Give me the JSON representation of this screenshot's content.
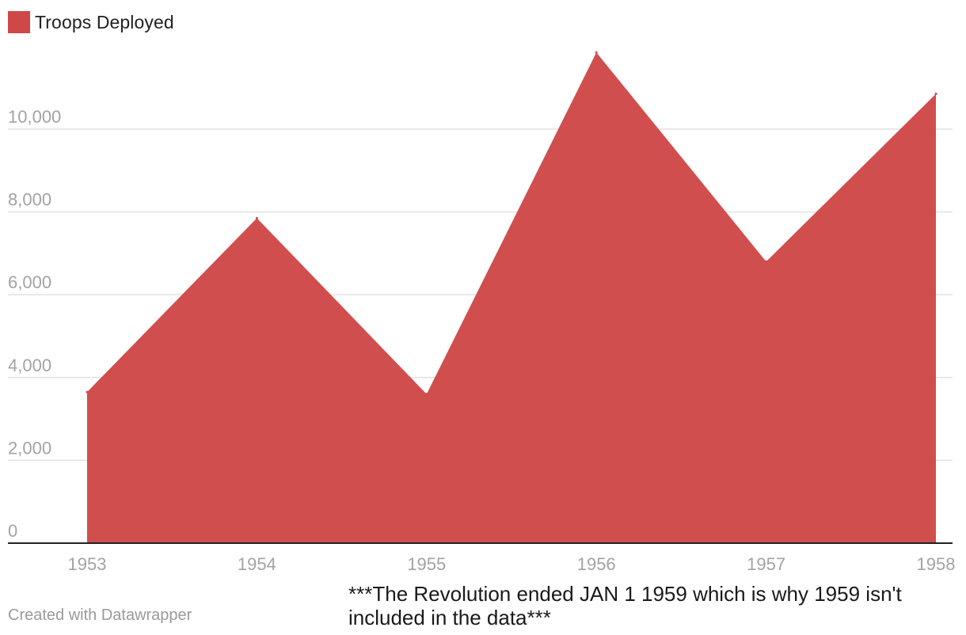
{
  "legend": {
    "label": "Troops Deployed",
    "color": "#cf4848"
  },
  "note": "***The Revolution ended JAN 1 1959 which is why 1959 isn't included in the data***",
  "credit": "Created with Datawrapper",
  "colors": {
    "area": "#cf4848",
    "grid": "#e2e2e2",
    "axis": "#222222",
    "tick_text": "#a3a3a3"
  },
  "chart_data": {
    "type": "area",
    "x": [
      "1953",
      "1954",
      "1955",
      "1956",
      "1957",
      "1958"
    ],
    "series": [
      {
        "name": "Troops Deployed",
        "values": [
          3650,
          7850,
          3600,
          11850,
          6800,
          10850
        ]
      }
    ],
    "yticks": [
      {
        "value": 0,
        "label": "0"
      },
      {
        "value": 2000,
        "label": "2,000"
      },
      {
        "value": 4000,
        "label": "4,000"
      },
      {
        "value": 6000,
        "label": "6,000"
      },
      {
        "value": 8000,
        "label": "8,000"
      },
      {
        "value": 10000,
        "label": "10,000"
      }
    ],
    "ylim": [
      0,
      12000
    ],
    "grid": true,
    "legend_position": "top-left"
  }
}
